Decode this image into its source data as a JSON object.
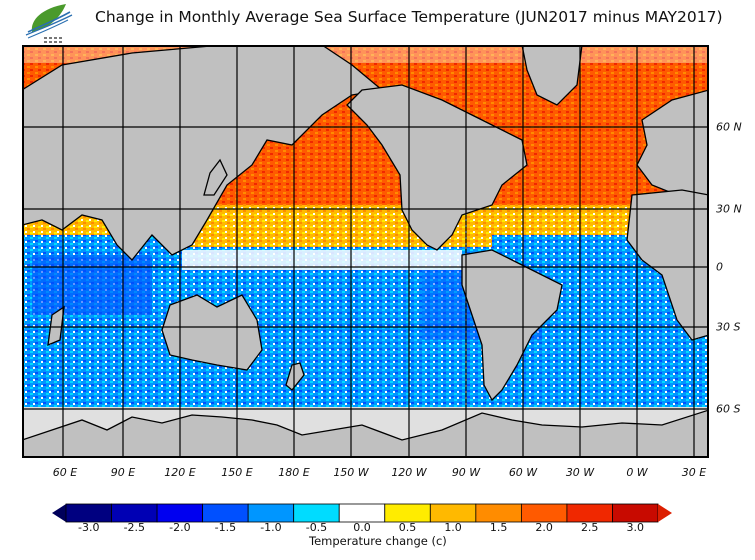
{
  "title": "Change in Monthly Average Sea Surface Temperature (JUN2017 minus MAY2017)",
  "logo": {
    "icon": "leaf-logo-icon",
    "text": "香港天文台 HKO"
  },
  "map": {
    "projection": "equirectangular",
    "lon_range": "40 E to 40 E (Pacific-centred)",
    "land_color": "#c0c0c0",
    "ice_color": "#e0e0e0",
    "lon_labels": [
      "60 E",
      "90 E",
      "120 E",
      "150 E",
      "180 E",
      "150 W",
      "120 W",
      "90 W",
      "60 W",
      "30 W",
      "0 W",
      "30 E"
    ],
    "lat_labels": [
      "60 N",
      "30 N",
      "0",
      "30 S",
      "60 S"
    ]
  },
  "colorbar": {
    "ticks": [
      "-3.0",
      "-2.5",
      "-2.0",
      "-1.5",
      "-1.0",
      "-0.5",
      "0.0",
      "0.5",
      "1.0",
      "1.5",
      "2.0",
      "2.5",
      "3.0"
    ],
    "colors": [
      "#000080",
      "#0000b4",
      "#0000f0",
      "#0050ff",
      "#0096ff",
      "#00dcff",
      "#ffffff",
      "#ffec00",
      "#ffb900",
      "#ff8c00",
      "#ff5a00",
      "#f02800",
      "#c80a00"
    ],
    "under_color": "#00005a",
    "over_color": "#dc1e00",
    "label": "Temperature change  (c)"
  }
}
